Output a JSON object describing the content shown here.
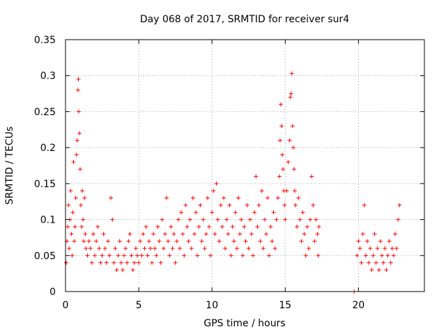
{
  "chart_data": {
    "type": "scatter",
    "title": "Day 068 of 2017, SRMTID for receiver sur4",
    "xlabel": "GPS time / hours",
    "ylabel": "SRMTID / TECUs",
    "xlim": [
      0,
      24.5
    ],
    "ylim": [
      0,
      0.35
    ],
    "xticks": [
      0,
      5,
      10,
      15,
      20
    ],
    "xtick_labels": [
      "0",
      "5",
      "10",
      "15",
      "20"
    ],
    "yticks": [
      0,
      0.05,
      0.1,
      0.15,
      0.2,
      0.25,
      0.3,
      0.35
    ],
    "ytick_labels": [
      "0",
      "0.05",
      "0.1",
      "0.15",
      "0.2",
      "0.25",
      "0.3",
      "0.35"
    ],
    "grid": true,
    "marker": "plus",
    "color": "#ff0000",
    "series": [
      {
        "name": "SRMTID",
        "points": [
          [
            0.05,
            0.04
          ],
          [
            0.1,
            0.07
          ],
          [
            0.15,
            0.09
          ],
          [
            0.2,
            0.12
          ],
          [
            0.25,
            0.06
          ],
          [
            0.3,
            0.1
          ],
          [
            0.35,
            0.14
          ],
          [
            0.4,
            0.08
          ],
          [
            0.45,
            0.05
          ],
          [
            0.5,
            0.11
          ],
          [
            0.55,
            0.18
          ],
          [
            0.6,
            0.07
          ],
          [
            0.65,
            0.09
          ],
          [
            0.7,
            0.13
          ],
          [
            0.75,
            0.19
          ],
          [
            0.8,
            0.21
          ],
          [
            0.85,
            0.28
          ],
          [
            0.88,
            0.295
          ],
          [
            0.9,
            0.25
          ],
          [
            0.95,
            0.22
          ],
          [
            1.0,
            0.17
          ],
          [
            1.05,
            0.12
          ],
          [
            1.1,
            0.09
          ],
          [
            1.15,
            0.14
          ],
          [
            1.2,
            0.1
          ],
          [
            1.25,
            0.07
          ],
          [
            1.3,
            0.13
          ],
          [
            1.35,
            0.08
          ],
          [
            1.4,
            0.06
          ],
          [
            1.5,
            0.05
          ],
          [
            1.6,
            0.07
          ],
          [
            1.7,
            0.06
          ],
          [
            1.8,
            0.04
          ],
          [
            1.9,
            0.08
          ],
          [
            2.0,
            0.05
          ],
          [
            2.1,
            0.07
          ],
          [
            2.2,
            0.09
          ],
          [
            2.3,
            0.06
          ],
          [
            2.4,
            0.04
          ],
          [
            2.5,
            0.05
          ],
          [
            2.6,
            0.08
          ],
          [
            2.7,
            0.06
          ],
          [
            2.8,
            0.04
          ],
          [
            2.9,
            0.07
          ],
          [
            3.0,
            0.05
          ],
          [
            3.1,
            0.13
          ],
          [
            3.2,
            0.1
          ],
          [
            3.3,
            0.04
          ],
          [
            3.4,
            0.06
          ],
          [
            3.5,
            0.03
          ],
          [
            3.6,
            0.05
          ],
          [
            3.7,
            0.07
          ],
          [
            3.8,
            0.04
          ],
          [
            3.9,
            0.03
          ],
          [
            4.0,
            0.05
          ],
          [
            4.1,
            0.06
          ],
          [
            4.2,
            0.04
          ],
          [
            4.3,
            0.07
          ],
          [
            4.4,
            0.08
          ],
          [
            4.5,
            0.05
          ],
          [
            4.6,
            0.03
          ],
          [
            4.7,
            0.04
          ],
          [
            4.8,
            0.06
          ],
          [
            4.9,
            0.05
          ],
          [
            5.0,
            0.04
          ],
          [
            5.1,
            0.07
          ],
          [
            5.2,
            0.05
          ],
          [
            5.3,
            0.08
          ],
          [
            5.4,
            0.06
          ],
          [
            5.5,
            0.09
          ],
          [
            5.6,
            0.05
          ],
          [
            5.7,
            0.07
          ],
          [
            5.8,
            0.06
          ],
          [
            5.9,
            0.04
          ],
          [
            6.0,
            0.08
          ],
          [
            6.1,
            0.06
          ],
          [
            6.2,
            0.05
          ],
          [
            6.3,
            0.09
          ],
          [
            6.4,
            0.07
          ],
          [
            6.5,
            0.04
          ],
          [
            6.6,
            0.1
          ],
          [
            6.7,
            0.06
          ],
          [
            6.8,
            0.08
          ],
          [
            6.9,
            0.13
          ],
          [
            7.0,
            0.07
          ],
          [
            7.1,
            0.05
          ],
          [
            7.2,
            0.09
          ],
          [
            7.3,
            0.06
          ],
          [
            7.4,
            0.08
          ],
          [
            7.5,
            0.04
          ],
          [
            7.6,
            0.07
          ],
          [
            7.7,
            0.1
          ],
          [
            7.8,
            0.06
          ],
          [
            7.9,
            0.11
          ],
          [
            8.0,
            0.08
          ],
          [
            8.1,
            0.05
          ],
          [
            8.2,
            0.12
          ],
          [
            8.3,
            0.09
          ],
          [
            8.4,
            0.07
          ],
          [
            8.5,
            0.1
          ],
          [
            8.6,
            0.06
          ],
          [
            8.7,
            0.13
          ],
          [
            8.8,
            0.08
          ],
          [
            8.9,
            0.11
          ],
          [
            9.0,
            0.05
          ],
          [
            9.1,
            0.09
          ],
          [
            9.2,
            0.12
          ],
          [
            9.3,
            0.07
          ],
          [
            9.4,
            0.1
          ],
          [
            9.5,
            0.06
          ],
          [
            9.6,
            0.08
          ],
          [
            9.7,
            0.13
          ],
          [
            9.8,
            0.09
          ],
          [
            9.9,
            0.05
          ],
          [
            10.0,
            0.11
          ],
          [
            10.1,
            0.14
          ],
          [
            10.2,
            0.08
          ],
          [
            10.3,
            0.15
          ],
          [
            10.4,
            0.1
          ],
          [
            10.5,
            0.07
          ],
          [
            10.6,
            0.12
          ],
          [
            10.7,
            0.09
          ],
          [
            10.8,
            0.13
          ],
          [
            10.9,
            0.06
          ],
          [
            11.0,
            0.1
          ],
          [
            11.1,
            0.08
          ],
          [
            11.2,
            0.12
          ],
          [
            11.3,
            0.05
          ],
          [
            11.4,
            0.09
          ],
          [
            11.5,
            0.07
          ],
          [
            11.6,
            0.11
          ],
          [
            11.7,
            0.06
          ],
          [
            11.8,
            0.13
          ],
          [
            11.9,
            0.08
          ],
          [
            12.0,
            0.1
          ],
          [
            12.1,
            0.05
          ],
          [
            12.2,
            0.09
          ],
          [
            12.3,
            0.07
          ],
          [
            12.4,
            0.12
          ],
          [
            12.5,
            0.06
          ],
          [
            12.6,
            0.1
          ],
          [
            12.7,
            0.08
          ],
          [
            12.8,
            0.05
          ],
          [
            12.9,
            0.11
          ],
          [
            13.0,
            0.16
          ],
          [
            13.1,
            0.09
          ],
          [
            13.2,
            0.12
          ],
          [
            13.3,
            0.07
          ],
          [
            13.4,
            0.14
          ],
          [
            13.5,
            0.06
          ],
          [
            13.6,
            0.1
          ],
          [
            13.7,
            0.08
          ],
          [
            13.8,
            0.13
          ],
          [
            13.9,
            0.05
          ],
          [
            14.0,
            0.09
          ],
          [
            14.1,
            0.07
          ],
          [
            14.2,
            0.11
          ],
          [
            14.3,
            0.06
          ],
          [
            14.4,
            0.1
          ],
          [
            14.5,
            0.13
          ],
          [
            14.6,
            0.16
          ],
          [
            14.65,
            0.21
          ],
          [
            14.7,
            0.26
          ],
          [
            14.75,
            0.23
          ],
          [
            14.8,
            0.19
          ],
          [
            14.85,
            0.17
          ],
          [
            14.9,
            0.14
          ],
          [
            14.95,
            0.12
          ],
          [
            15.0,
            0.1
          ],
          [
            15.1,
            0.14
          ],
          [
            15.2,
            0.18
          ],
          [
            15.3,
            0.21
          ],
          [
            15.35,
            0.27
          ],
          [
            15.4,
            0.275
          ],
          [
            15.45,
            0.303
          ],
          [
            15.5,
            0.23
          ],
          [
            15.55,
            0.2
          ],
          [
            15.6,
            0.17
          ],
          [
            15.65,
            0.14
          ],
          [
            15.7,
            0.12
          ],
          [
            15.8,
            0.09
          ],
          [
            15.9,
            0.13
          ],
          [
            16.0,
            0.1
          ],
          [
            16.1,
            0.07
          ],
          [
            16.2,
            0.11
          ],
          [
            16.3,
            0.08
          ],
          [
            16.4,
            0.05
          ],
          [
            16.5,
            0.09
          ],
          [
            16.6,
            0.06
          ],
          [
            16.7,
            0.1
          ],
          [
            16.8,
            0.16
          ],
          [
            16.9,
            0.12
          ],
          [
            17.0,
            0.07
          ],
          [
            17.1,
            0.1
          ],
          [
            17.2,
            0.08
          ],
          [
            17.25,
            0.05
          ],
          [
            17.3,
            0.09
          ],
          [
            19.7,
            0.0
          ],
          [
            19.9,
            0.05
          ],
          [
            20.0,
            0.07
          ],
          [
            20.1,
            0.06
          ],
          [
            20.2,
            0.04
          ],
          [
            20.3,
            0.08
          ],
          [
            20.4,
            0.12
          ],
          [
            20.5,
            0.05
          ],
          [
            20.6,
            0.07
          ],
          [
            20.7,
            0.04
          ],
          [
            20.8,
            0.06
          ],
          [
            20.9,
            0.03
          ],
          [
            21.0,
            0.05
          ],
          [
            21.1,
            0.08
          ],
          [
            21.2,
            0.04
          ],
          [
            21.3,
            0.06
          ],
          [
            21.4,
            0.03
          ],
          [
            21.5,
            0.07
          ],
          [
            21.6,
            0.05
          ],
          [
            21.7,
            0.04
          ],
          [
            21.8,
            0.06
          ],
          [
            21.9,
            0.03
          ],
          [
            22.0,
            0.05
          ],
          [
            22.1,
            0.07
          ],
          [
            22.2,
            0.04
          ],
          [
            22.3,
            0.06
          ],
          [
            22.4,
            0.05
          ],
          [
            22.5,
            0.08
          ],
          [
            22.6,
            0.06
          ],
          [
            22.7,
            0.1
          ],
          [
            22.8,
            0.12
          ]
        ]
      }
    ]
  }
}
